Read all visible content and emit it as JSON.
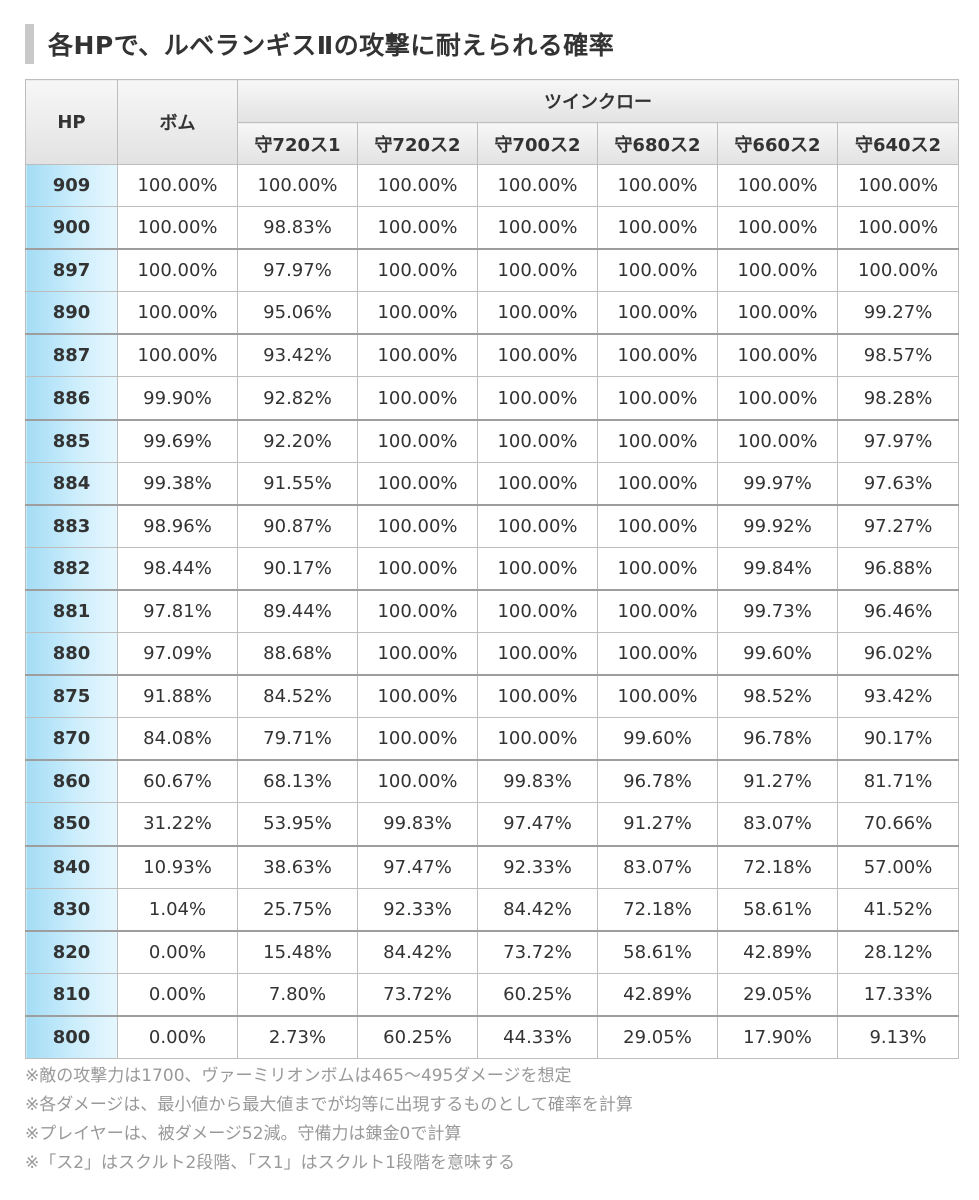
{
  "title": "各HPで、ルベランギスⅡの攻撃に耐えられる確率",
  "table": {
    "hp_header": "HP",
    "bomb_header": "ボム",
    "group_header": "ツインクロー",
    "sub_headers": [
      "守720ス1",
      "守720ス2",
      "守700ス2",
      "守680ス2",
      "守660ス2",
      "守640ス2"
    ],
    "rows": [
      {
        "hp": "909",
        "bomb": "100.00%",
        "vals": [
          "100.00%",
          "100.00%",
          "100.00%",
          "100.00%",
          "100.00%",
          "100.00%"
        ]
      },
      {
        "hp": "900",
        "bomb": "100.00%",
        "vals": [
          "98.83%",
          "100.00%",
          "100.00%",
          "100.00%",
          "100.00%",
          "100.00%"
        ]
      },
      {
        "hp": "897",
        "bomb": "100.00%",
        "vals": [
          "97.97%",
          "100.00%",
          "100.00%",
          "100.00%",
          "100.00%",
          "100.00%"
        ]
      },
      {
        "hp": "890",
        "bomb": "100.00%",
        "vals": [
          "95.06%",
          "100.00%",
          "100.00%",
          "100.00%",
          "100.00%",
          "99.27%"
        ]
      },
      {
        "hp": "887",
        "bomb": "100.00%",
        "vals": [
          "93.42%",
          "100.00%",
          "100.00%",
          "100.00%",
          "100.00%",
          "98.57%"
        ]
      },
      {
        "hp": "886",
        "bomb": "99.90%",
        "vals": [
          "92.82%",
          "100.00%",
          "100.00%",
          "100.00%",
          "100.00%",
          "98.28%"
        ]
      },
      {
        "hp": "885",
        "bomb": "99.69%",
        "vals": [
          "92.20%",
          "100.00%",
          "100.00%",
          "100.00%",
          "100.00%",
          "97.97%"
        ]
      },
      {
        "hp": "884",
        "bomb": "99.38%",
        "vals": [
          "91.55%",
          "100.00%",
          "100.00%",
          "100.00%",
          "99.97%",
          "97.63%"
        ]
      },
      {
        "hp": "883",
        "bomb": "98.96%",
        "vals": [
          "90.87%",
          "100.00%",
          "100.00%",
          "100.00%",
          "99.92%",
          "97.27%"
        ]
      },
      {
        "hp": "882",
        "bomb": "98.44%",
        "vals": [
          "90.17%",
          "100.00%",
          "100.00%",
          "100.00%",
          "99.84%",
          "96.88%"
        ]
      },
      {
        "hp": "881",
        "bomb": "97.81%",
        "vals": [
          "89.44%",
          "100.00%",
          "100.00%",
          "100.00%",
          "99.73%",
          "96.46%"
        ]
      },
      {
        "hp": "880",
        "bomb": "97.09%",
        "vals": [
          "88.68%",
          "100.00%",
          "100.00%",
          "100.00%",
          "99.60%",
          "96.02%"
        ]
      },
      {
        "hp": "875",
        "bomb": "91.88%",
        "vals": [
          "84.52%",
          "100.00%",
          "100.00%",
          "100.00%",
          "98.52%",
          "93.42%"
        ]
      },
      {
        "hp": "870",
        "bomb": "84.08%",
        "vals": [
          "79.71%",
          "100.00%",
          "100.00%",
          "99.60%",
          "96.78%",
          "90.17%"
        ]
      },
      {
        "hp": "860",
        "bomb": "60.67%",
        "vals": [
          "68.13%",
          "100.00%",
          "99.83%",
          "96.78%",
          "91.27%",
          "81.71%"
        ]
      },
      {
        "hp": "850",
        "bomb": "31.22%",
        "vals": [
          "53.95%",
          "99.83%",
          "97.47%",
          "91.27%",
          "83.07%",
          "70.66%"
        ]
      },
      {
        "hp": "840",
        "bomb": "10.93%",
        "vals": [
          "38.63%",
          "97.47%",
          "92.33%",
          "83.07%",
          "72.18%",
          "57.00%"
        ]
      },
      {
        "hp": "830",
        "bomb": "1.04%",
        "vals": [
          "25.75%",
          "92.33%",
          "84.42%",
          "72.18%",
          "58.61%",
          "41.52%"
        ]
      },
      {
        "hp": "820",
        "bomb": "0.00%",
        "vals": [
          "15.48%",
          "84.42%",
          "73.72%",
          "58.61%",
          "42.89%",
          "28.12%"
        ]
      },
      {
        "hp": "810",
        "bomb": "0.00%",
        "vals": [
          "7.80%",
          "73.72%",
          "60.25%",
          "42.89%",
          "29.05%",
          "17.33%"
        ]
      },
      {
        "hp": "800",
        "bomb": "0.00%",
        "vals": [
          "2.73%",
          "60.25%",
          "44.33%",
          "29.05%",
          "17.90%",
          "9.13%"
        ]
      }
    ]
  },
  "notes": [
    "※敵の攻撃力は1700、ヴァーミリオンボムは465〜495ダメージを想定",
    "※各ダメージは、最小値から最大値までが均等に出現するものとして確率を計算",
    "※プレイヤーは、被ダメージ52減。守備力は錬金0で計算",
    "※「ス2」はスクルト2段階、「ス1」はスクルト1段階を意味する"
  ],
  "colors": {
    "title_bar": "#c9c9c9",
    "header_bg": "#e6e6e6",
    "hp_cell_bg": "#a4dcf5",
    "border": "#bdbdbd",
    "note_text": "#999999"
  }
}
